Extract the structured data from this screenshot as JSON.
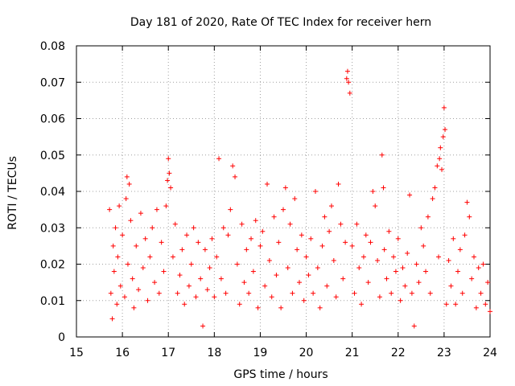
{
  "chart_data": {
    "type": "scatter",
    "title": "Day 181 of 2020, Rate Of TEC Index for receiver hern",
    "xlabel": "GPS time / hours",
    "ylabel": "ROTI / TECUs",
    "xlim": [
      15,
      24
    ],
    "ylim": [
      0,
      0.08
    ],
    "x_ticks": [
      15,
      16,
      17,
      18,
      19,
      20,
      21,
      22,
      23,
      24
    ],
    "x_tick_labels": [
      "15",
      "16",
      "17",
      "18",
      "19",
      "20",
      "21",
      "22",
      "23",
      "24"
    ],
    "y_ticks": [
      0,
      0.01,
      0.02,
      0.03,
      0.04,
      0.05,
      0.06,
      0.07,
      0.08
    ],
    "y_tick_labels": [
      "0",
      "0.01",
      "0.02",
      "0.03",
      "0.04",
      "0.05",
      "0.06",
      "0.07",
      "0.08"
    ],
    "grid": true,
    "marker": "+",
    "color": "#ff0000",
    "series": [
      {
        "name": "ROTI",
        "points": [
          [
            15.72,
            0.035
          ],
          [
            15.75,
            0.012
          ],
          [
            15.78,
            0.005
          ],
          [
            15.8,
            0.025
          ],
          [
            15.82,
            0.018
          ],
          [
            15.85,
            0.03
          ],
          [
            15.88,
            0.009
          ],
          [
            15.9,
            0.022
          ],
          [
            15.93,
            0.036
          ],
          [
            15.96,
            0.014
          ],
          [
            16.0,
            0.028
          ],
          [
            16.05,
            0.011
          ],
          [
            16.08,
            0.038
          ],
          [
            16.1,
            0.044
          ],
          [
            16.12,
            0.02
          ],
          [
            16.15,
            0.042
          ],
          [
            16.18,
            0.032
          ],
          [
            16.22,
            0.016
          ],
          [
            16.25,
            0.008
          ],
          [
            16.3,
            0.025
          ],
          [
            16.35,
            0.013
          ],
          [
            16.4,
            0.034
          ],
          [
            16.45,
            0.019
          ],
          [
            16.5,
            0.027
          ],
          [
            16.55,
            0.01
          ],
          [
            16.6,
            0.022
          ],
          [
            16.65,
            0.03
          ],
          [
            16.7,
            0.015
          ],
          [
            16.75,
            0.035
          ],
          [
            16.8,
            0.012
          ],
          [
            16.85,
            0.026
          ],
          [
            16.9,
            0.018
          ],
          [
            16.95,
            0.036
          ],
          [
            16.98,
            0.043
          ],
          [
            17.0,
            0.049
          ],
          [
            17.02,
            0.045
          ],
          [
            17.05,
            0.041
          ],
          [
            17.1,
            0.022
          ],
          [
            17.15,
            0.031
          ],
          [
            17.2,
            0.012
          ],
          [
            17.25,
            0.017
          ],
          [
            17.3,
            0.024
          ],
          [
            17.35,
            0.009
          ],
          [
            17.4,
            0.028
          ],
          [
            17.45,
            0.014
          ],
          [
            17.5,
            0.02
          ],
          [
            17.55,
            0.03
          ],
          [
            17.6,
            0.011
          ],
          [
            17.65,
            0.026
          ],
          [
            17.7,
            0.016
          ],
          [
            17.75,
            0.003
          ],
          [
            17.8,
            0.024
          ],
          [
            17.85,
            0.013
          ],
          [
            17.9,
            0.019
          ],
          [
            17.95,
            0.027
          ],
          [
            18.0,
            0.011
          ],
          [
            18.05,
            0.022
          ],
          [
            18.1,
            0.049
          ],
          [
            18.15,
            0.016
          ],
          [
            18.2,
            0.03
          ],
          [
            18.25,
            0.012
          ],
          [
            18.3,
            0.028
          ],
          [
            18.35,
            0.035
          ],
          [
            18.4,
            0.047
          ],
          [
            18.45,
            0.044
          ],
          [
            18.5,
            0.02
          ],
          [
            18.55,
            0.009
          ],
          [
            18.6,
            0.031
          ],
          [
            18.65,
            0.015
          ],
          [
            18.7,
            0.024
          ],
          [
            18.75,
            0.012
          ],
          [
            18.8,
            0.027
          ],
          [
            18.85,
            0.018
          ],
          [
            18.9,
            0.032
          ],
          [
            18.95,
            0.008
          ],
          [
            19.0,
            0.025
          ],
          [
            19.05,
            0.029
          ],
          [
            19.1,
            0.014
          ],
          [
            19.15,
            0.042
          ],
          [
            19.2,
            0.021
          ],
          [
            19.25,
            0.011
          ],
          [
            19.3,
            0.033
          ],
          [
            19.35,
            0.017
          ],
          [
            19.4,
            0.026
          ],
          [
            19.45,
            0.008
          ],
          [
            19.5,
            0.035
          ],
          [
            19.55,
            0.041
          ],
          [
            19.6,
            0.019
          ],
          [
            19.65,
            0.031
          ],
          [
            19.7,
            0.012
          ],
          [
            19.75,
            0.038
          ],
          [
            19.8,
            0.024
          ],
          [
            19.85,
            0.015
          ],
          [
            19.9,
            0.028
          ],
          [
            19.95,
            0.01
          ],
          [
            20.0,
            0.022
          ],
          [
            20.05,
            0.017
          ],
          [
            20.1,
            0.027
          ],
          [
            20.15,
            0.012
          ],
          [
            20.2,
            0.04
          ],
          [
            20.25,
            0.019
          ],
          [
            20.3,
            0.008
          ],
          [
            20.35,
            0.025
          ],
          [
            20.4,
            0.033
          ],
          [
            20.45,
            0.014
          ],
          [
            20.5,
            0.029
          ],
          [
            20.55,
            0.036
          ],
          [
            20.6,
            0.021
          ],
          [
            20.65,
            0.011
          ],
          [
            20.7,
            0.042
          ],
          [
            20.75,
            0.031
          ],
          [
            20.8,
            0.016
          ],
          [
            20.85,
            0.026
          ],
          [
            20.88,
            0.071
          ],
          [
            20.9,
            0.073
          ],
          [
            20.92,
            0.07
          ],
          [
            20.95,
            0.067
          ],
          [
            21.0,
            0.025
          ],
          [
            21.05,
            0.012
          ],
          [
            21.1,
            0.031
          ],
          [
            21.15,
            0.019
          ],
          [
            21.2,
            0.009
          ],
          [
            21.25,
            0.022
          ],
          [
            21.3,
            0.028
          ],
          [
            21.35,
            0.015
          ],
          [
            21.4,
            0.026
          ],
          [
            21.45,
            0.04
          ],
          [
            21.5,
            0.036
          ],
          [
            21.55,
            0.021
          ],
          [
            21.6,
            0.011
          ],
          [
            21.65,
            0.05
          ],
          [
            21.68,
            0.041
          ],
          [
            21.7,
            0.024
          ],
          [
            21.75,
            0.016
          ],
          [
            21.8,
            0.029
          ],
          [
            21.85,
            0.012
          ],
          [
            21.9,
            0.022
          ],
          [
            21.95,
            0.018
          ],
          [
            22.0,
            0.027
          ],
          [
            22.05,
            0.01
          ],
          [
            22.1,
            0.019
          ],
          [
            22.15,
            0.014
          ],
          [
            22.2,
            0.023
          ],
          [
            22.25,
            0.039
          ],
          [
            22.3,
            0.012
          ],
          [
            22.35,
            0.003
          ],
          [
            22.4,
            0.02
          ],
          [
            22.45,
            0.015
          ],
          [
            22.5,
            0.03
          ],
          [
            22.55,
            0.025
          ],
          [
            22.6,
            0.018
          ],
          [
            22.65,
            0.033
          ],
          [
            22.7,
            0.012
          ],
          [
            22.75,
            0.038
          ],
          [
            22.8,
            0.041
          ],
          [
            22.85,
            0.047
          ],
          [
            22.88,
            0.022
          ],
          [
            22.9,
            0.049
          ],
          [
            22.92,
            0.052
          ],
          [
            22.95,
            0.046
          ],
          [
            22.98,
            0.055
          ],
          [
            23.0,
            0.063
          ],
          [
            23.02,
            0.057
          ],
          [
            23.05,
            0.009
          ],
          [
            23.1,
            0.021
          ],
          [
            23.15,
            0.014
          ],
          [
            23.2,
            0.027
          ],
          [
            23.25,
            0.009
          ],
          [
            23.3,
            0.018
          ],
          [
            23.35,
            0.024
          ],
          [
            23.4,
            0.012
          ],
          [
            23.45,
            0.028
          ],
          [
            23.5,
            0.037
          ],
          [
            23.55,
            0.033
          ],
          [
            23.6,
            0.016
          ],
          [
            23.65,
            0.022
          ],
          [
            23.7,
            0.008
          ],
          [
            23.75,
            0.019
          ],
          [
            23.8,
            0.012
          ],
          [
            23.85,
            0.02
          ],
          [
            23.9,
            0.009
          ],
          [
            23.95,
            0.015
          ],
          [
            24.0,
            0.007
          ]
        ]
      }
    ]
  }
}
